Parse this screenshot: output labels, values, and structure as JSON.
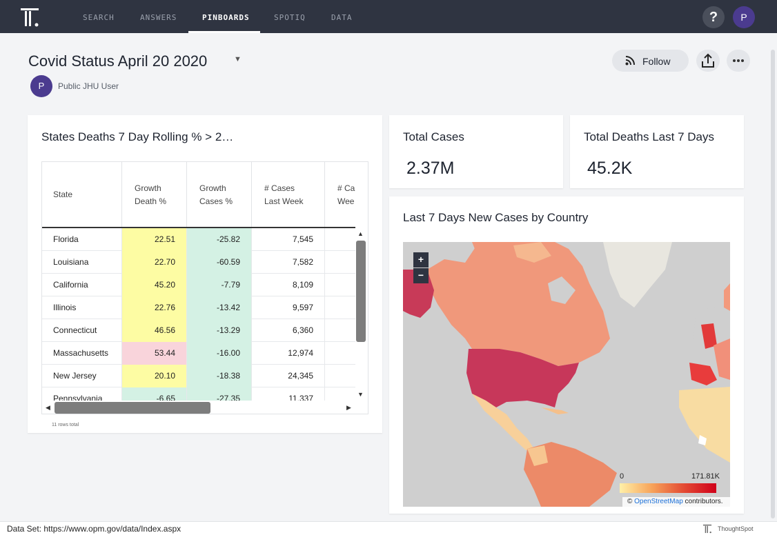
{
  "nav": {
    "items": [
      "SEARCH",
      "ANSWERS",
      "PINBOARDS",
      "SPOTIQ",
      "DATA"
    ],
    "active": "PINBOARDS",
    "help_label": "?",
    "avatar_initial": "P"
  },
  "pinboard": {
    "title": "Covid Status April 20 2020",
    "author_initial": "P",
    "author": "Public JHU User",
    "follow_label": "Follow"
  },
  "table_card": {
    "title": "States Deaths 7 Day Rolling % > 2…",
    "columns": [
      "State",
      "Growth\nDeath %",
      "Growth\nCases %",
      "# Cases\nLast Week",
      "# Ca\nWee"
    ],
    "rows": [
      {
        "state": "Florida",
        "growth_death": "22.51",
        "growth_cases": "-25.82",
        "cases_last_week": "7,545",
        "death_color": "#fdfca3"
      },
      {
        "state": "Louisiana",
        "growth_death": "22.70",
        "growth_cases": "-60.59",
        "cases_last_week": "7,582",
        "death_color": "#fdfca3"
      },
      {
        "state": "California",
        "growth_death": "45.20",
        "growth_cases": "-7.79",
        "cases_last_week": "8,109",
        "death_color": "#fdfca3"
      },
      {
        "state": "Illinois",
        "growth_death": "22.76",
        "growth_cases": "-13.42",
        "cases_last_week": "9,597",
        "death_color": "#fdfca3"
      },
      {
        "state": "Connecticut",
        "growth_death": "46.56",
        "growth_cases": "-13.29",
        "cases_last_week": "6,360",
        "death_color": "#fdfca3"
      },
      {
        "state": "Massachusetts",
        "growth_death": "53.44",
        "growth_cases": "-16.00",
        "cases_last_week": "12,974",
        "death_color": "#f9d4db"
      },
      {
        "state": "New Jersey",
        "growth_death": "20.10",
        "growth_cases": "-18.38",
        "cases_last_week": "24,345",
        "death_color": "#fdfca3"
      },
      {
        "state": "Pennsylvania",
        "growth_death": "-6.65",
        "growth_cases": "-27.35",
        "cases_last_week": "11,337",
        "death_color": "#d4f1e4"
      }
    ],
    "cases_color": "#d4f1e4",
    "rows_total": "11 rows total"
  },
  "kpis": [
    {
      "title": "Total Cases",
      "value": "2.37M"
    },
    {
      "title": "Total Deaths Last 7 Days",
      "value": "45.2K"
    }
  ],
  "map_card": {
    "title": "Last 7 Days New Cases by Country",
    "zoom_in": "+",
    "zoom_out": "−",
    "legend_min": "0",
    "legend_max": "171.81K",
    "attribution_prefix": "©",
    "attribution_link": "OpenStreetMap",
    "attribution_suffix": "contributors."
  },
  "footer": {
    "dataset": "Data Set: https://www.opm.gov/data/Index.aspx",
    "brand": "ThoughtSpot"
  }
}
